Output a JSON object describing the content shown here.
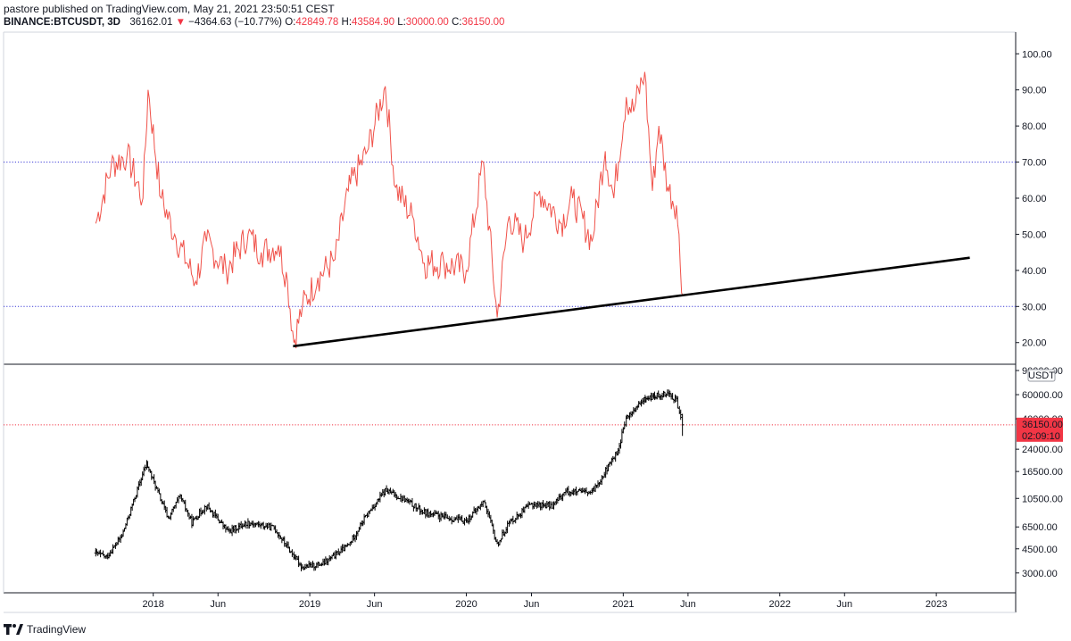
{
  "header": {
    "publish_text": "pastore published on TradingView.com, May 21, 2021 23:50:51 CEST",
    "symbol": "BINANCE:BTCUSDT, 3D",
    "last": "36162.01",
    "change_arrow": "▼",
    "change": "−4364.63 (−10.77%)",
    "o_label": "O:",
    "o_value": "42849.78",
    "h_label": "H:",
    "h_value": "43584.90",
    "l_label": "L:",
    "l_value": "30000.00",
    "c_label": "C:",
    "c_value": "36150.00"
  },
  "footer": {
    "brand": "TradingView"
  },
  "colors": {
    "rsi_line": "#f0524a",
    "price_bars": "#000000",
    "red_label": "#f23645",
    "ref_line": "#3a3ad6"
  },
  "chart_data": [
    {
      "type": "line",
      "indicator": "RSI",
      "ylim": [
        14,
        106
      ],
      "y_ticks": [
        "100.00",
        "90.00",
        "80.00",
        "70.00",
        "60.00",
        "50.00",
        "40.00",
        "30.00",
        "20.00"
      ],
      "y_tick_values": [
        100,
        90,
        80,
        70,
        60,
        50,
        40,
        30,
        20
      ],
      "reference_lines": [
        70,
        30
      ],
      "x": [
        "2017-08-20",
        "2017-09-25",
        "2017-11-01",
        "2017-12-08",
        "2017-12-20",
        "2018-01-20",
        "2018-02-20",
        "2018-04-10",
        "2018-05-05",
        "2018-06-20",
        "2018-08-10",
        "2018-09-10",
        "2018-10-20",
        "2018-11-10",
        "2018-11-25",
        "2018-12-15",
        "2019-01-20",
        "2019-03-01",
        "2019-04-01",
        "2019-05-15",
        "2019-06-26",
        "2019-07-20",
        "2019-09-01",
        "2019-09-25",
        "2019-11-10",
        "2020-01-01",
        "2020-02-10",
        "2020-03-13",
        "2020-04-10",
        "2020-05-15",
        "2020-06-20",
        "2020-08-10",
        "2020-09-05",
        "2020-10-20",
        "2020-11-20",
        "2020-12-10",
        "2021-01-08",
        "2021-01-25",
        "2021-02-20",
        "2021-03-10",
        "2021-03-25",
        "2021-04-15",
        "2021-05-05",
        "2021-05-20"
      ],
      "y": [
        53,
        69,
        72,
        60,
        90,
        60,
        50,
        37,
        48,
        40,
        50,
        45,
        47,
        37,
        20,
        30,
        38,
        43,
        62,
        73,
        91,
        63,
        54,
        42,
        42,
        40,
        70,
        27,
        55,
        48,
        62,
        53,
        60,
        48,
        73,
        60,
        88,
        84,
        95,
        62,
        80,
        63,
        58,
        33
      ],
      "trendline": {
        "x": [
          "2018-11-23",
          "2023-03-20"
        ],
        "y": [
          19,
          43.5
        ]
      }
    },
    {
      "type": "bar",
      "subtype": "ohlc",
      "series_name": "BINANCE:BTCUSDT, 3D",
      "yscale": "log",
      "y_ticks": [
        "90000.00",
        "60000.00",
        "40000.00",
        "24000.00",
        "16500.00",
        "10500.00",
        "6500.00",
        "4500.00",
        "3000.00"
      ],
      "y_tick_values": [
        90000,
        60000,
        40000,
        24000,
        16500,
        10500,
        6500,
        4500,
        3000
      ],
      "unit_label": "USDT",
      "last_price_label": "36150.00",
      "countdown_label": "02:09:10",
      "x": [
        "2017-08-20",
        "2017-09-15",
        "2017-10-20",
        "2017-12-17",
        "2018-02-05",
        "2018-03-05",
        "2018-04-01",
        "2018-05-05",
        "2018-06-25",
        "2018-08-10",
        "2018-10-10",
        "2018-11-25",
        "2018-12-15",
        "2019-02-01",
        "2019-04-02",
        "2019-05-15",
        "2019-06-26",
        "2019-08-10",
        "2019-09-25",
        "2019-11-22",
        "2020-01-01",
        "2020-02-13",
        "2020-03-13",
        "2020-04-10",
        "2020-06-01",
        "2020-07-20",
        "2020-08-20",
        "2020-10-20",
        "2020-11-30",
        "2020-12-20",
        "2021-01-08",
        "2021-02-21",
        "2021-03-13",
        "2021-04-14",
        "2021-05-05",
        "2021-05-12",
        "2021-05-19"
      ],
      "values": [
        4200,
        3900,
        5600,
        19000,
        7500,
        10800,
        7000,
        9300,
        6000,
        7000,
        6400,
        4000,
        3300,
        3500,
        4800,
        8000,
        12000,
        10300,
        8300,
        7500,
        7200,
        10000,
        4800,
        7000,
        9500,
        9300,
        11800,
        11500,
        18500,
        23500,
        40000,
        56000,
        58000,
        62000,
        55000,
        43000,
        36150
      ]
    }
  ],
  "x_axis": {
    "labels": [
      "2018",
      "Jun",
      "2019",
      "Jun",
      "2020",
      "Jun",
      "2021",
      "Jun",
      "2022",
      "Jun",
      "2023"
    ],
    "dates": [
      "2018-01-01",
      "2018-06-01",
      "2019-01-01",
      "2019-06-01",
      "2020-01-01",
      "2020-06-01",
      "2021-01-01",
      "2021-06-01",
      "2022-01-01",
      "2022-06-01",
      "2023-01-01"
    ]
  }
}
